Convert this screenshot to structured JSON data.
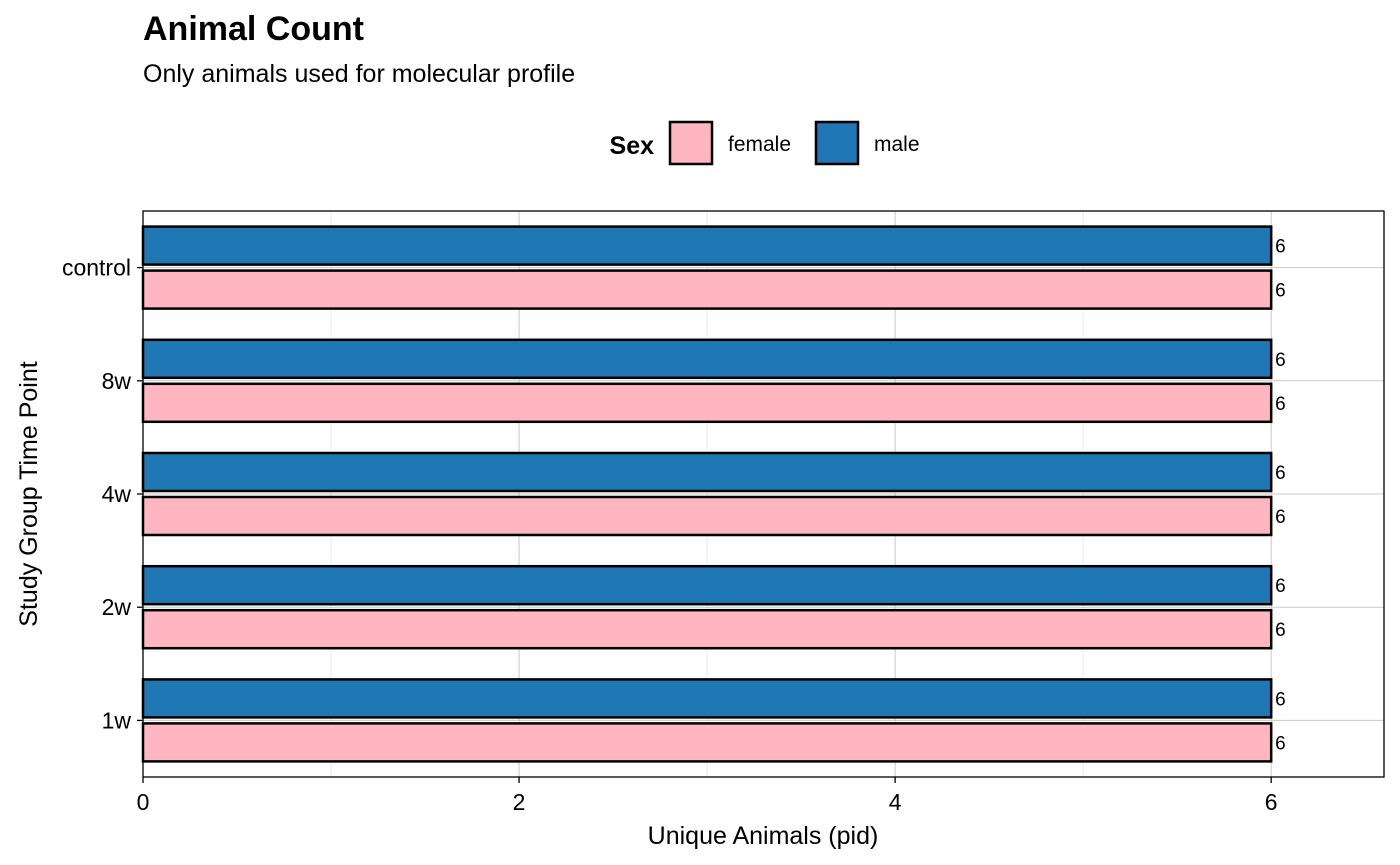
{
  "chart_data": {
    "type": "bar",
    "orientation": "horizontal",
    "title": "Animal Count",
    "subtitle": "Only animals used for molecular profile",
    "xlabel": "Unique Animals (pid)",
    "ylabel": "Study Group Time Point",
    "categories": [
      "control",
      "8w",
      "4w",
      "2w",
      "1w"
    ],
    "series": [
      {
        "name": "male",
        "color": "#1F77B4",
        "values": [
          6,
          6,
          6,
          6,
          6
        ]
      },
      {
        "name": "female",
        "color": "#FFB6C1",
        "values": [
          6,
          6,
          6,
          6,
          6
        ]
      }
    ],
    "data_labels": [
      "6",
      "6",
      "6",
      "6",
      "6",
      "6",
      "6",
      "6",
      "6",
      "6"
    ],
    "xlim": [
      0,
      6.6
    ],
    "xticks": [
      0,
      2,
      4,
      6
    ],
    "xtick_labels": [
      "0",
      "2",
      "4",
      "6"
    ],
    "grid": true,
    "legend": {
      "title": "Sex",
      "position": "top",
      "entries": [
        "female",
        "male"
      ]
    }
  }
}
